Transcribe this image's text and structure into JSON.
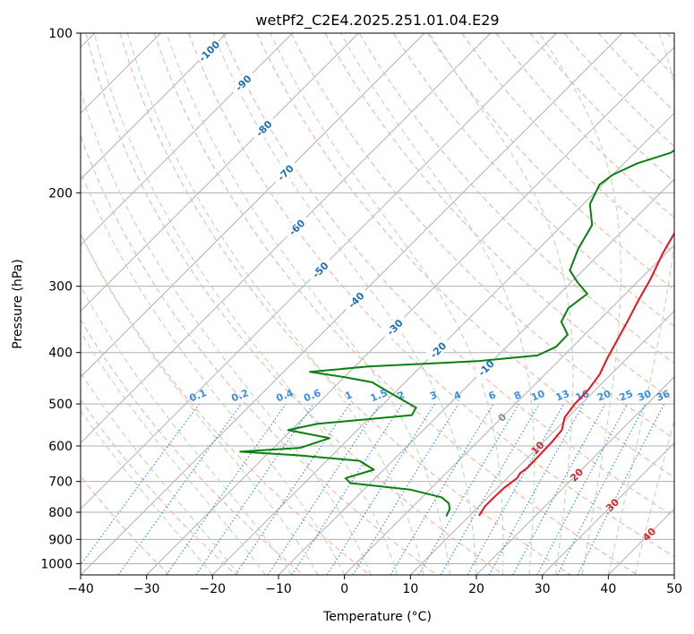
{
  "chart_data": {
    "type": "line",
    "title": "wetPf2_C2E4.2025.251.01.04.E29",
    "xlabel": "Temperature (°C)",
    "ylabel": "Pressure (hPa)",
    "xlim": [
      -40,
      50
    ],
    "ylim": [
      1050,
      100
    ],
    "x_scale": "linear (skewed isotherms)",
    "y_scale": "log",
    "x_ticks": [
      -40,
      -30,
      -20,
      -10,
      0,
      10,
      20,
      30,
      40,
      50
    ],
    "x_tick_labels": [
      "−40",
      "−30",
      "−20",
      "−10",
      "0",
      "10",
      "20",
      "30",
      "40",
      "50"
    ],
    "y_ticks": [
      1000,
      900,
      800,
      700,
      600,
      500,
      400,
      300,
      200,
      100
    ],
    "y_tick_labels": [
      "1000",
      "900",
      "800",
      "700",
      "600",
      "500",
      "400",
      "300",
      "200",
      "100"
    ],
    "grid": true,
    "colors": {
      "temperature": "#e8141c",
      "dewpoint": "#0a7f12",
      "isotherm": "#b0b0b0",
      "dry_adiabat": "#f4b4a4",
      "moist_adiabat": "#b8dcb4",
      "mixing_ratio": "#3a8ee6",
      "isotherm_label": "#1f6fb4",
      "mixing_label": "#3a8ee6",
      "lcl_label": "#8c8c8c",
      "warm_label": "#d62728"
    },
    "series": [
      {
        "name": "Temperature",
        "color": "#e8141c",
        "points": [
          [
            11.4,
            810
          ],
          [
            10.9,
            780
          ],
          [
            10.9,
            750
          ],
          [
            11.0,
            720
          ],
          [
            11.5,
            690
          ],
          [
            11.2,
            675
          ],
          [
            11.5,
            660
          ],
          [
            11.4,
            620
          ],
          [
            11.3,
            590
          ],
          [
            11.0,
            560
          ],
          [
            9.5,
            530
          ],
          [
            9.0,
            500
          ],
          [
            8.9,
            470
          ],
          [
            8.3,
            440
          ],
          [
            7.0,
            410
          ],
          [
            5.8,
            380
          ],
          [
            4.5,
            350
          ],
          [
            3.0,
            320
          ],
          [
            1.5,
            290
          ],
          [
            -0.5,
            260
          ],
          [
            -2.3,
            230
          ],
          [
            -2.8,
            215
          ],
          [
            -2.1,
            203
          ],
          [
            -1.5,
            196
          ],
          [
            0.5,
            185
          ],
          [
            2.0,
            175
          ],
          [
            2.5,
            165
          ],
          [
            3.0,
            152
          ],
          [
            4.0,
            140
          ],
          [
            5.0,
            130
          ],
          [
            5.5,
            122
          ],
          [
            6.0,
            115
          ],
          [
            7.5,
            108
          ],
          [
            8.5,
            100
          ]
        ]
      },
      {
        "name": "Dewpoint",
        "color": "#0a7f12",
        "points": [
          [
            6.5,
            812
          ],
          [
            6.0,
            790
          ],
          [
            5.0,
            770
          ],
          [
            3.0,
            750
          ],
          [
            -3.0,
            725
          ],
          [
            -13.0,
            705
          ],
          [
            -14.5,
            690
          ],
          [
            -11.5,
            665
          ],
          [
            -15.0,
            640
          ],
          [
            -25.0,
            625
          ],
          [
            -34.5,
            615
          ],
          [
            -26.0,
            605
          ],
          [
            -23.0,
            580
          ],
          [
            -30.5,
            560
          ],
          [
            -27.0,
            545
          ],
          [
            -14.0,
            525
          ],
          [
            -14.5,
            508
          ],
          [
            -18.0,
            490
          ],
          [
            -22.0,
            470
          ],
          [
            -25.0,
            455
          ],
          [
            -30.0,
            445
          ],
          [
            -36.0,
            435
          ],
          [
            -28.0,
            425
          ],
          [
            -12.0,
            415
          ],
          [
            -4.0,
            405
          ],
          [
            -2.5,
            390
          ],
          [
            -2.6,
            370
          ],
          [
            -5.5,
            350
          ],
          [
            -6.5,
            330
          ],
          [
            -5.8,
            310
          ],
          [
            -9.0,
            295
          ],
          [
            -12.0,
            280
          ],
          [
            -14.0,
            255
          ],
          [
            -15.5,
            230
          ],
          [
            -19.0,
            210
          ],
          [
            -20.5,
            193
          ],
          [
            -20.0,
            185
          ],
          [
            -18.0,
            176
          ],
          [
            -14.5,
            168
          ],
          [
            -14.0,
            160
          ],
          [
            -13.0,
            150
          ],
          [
            -11.0,
            135
          ],
          [
            -8.0,
            120
          ],
          [
            -4.0,
            108
          ],
          [
            -2.5,
            100
          ]
        ]
      }
    ],
    "isotherm_labels": [
      "-100",
      "-90",
      "-80",
      "-70",
      "-60",
      "-50",
      "-40",
      "-30",
      "-20",
      "-10"
    ],
    "mixing_ratio_labels": [
      "0.1",
      "0.2",
      "0.4",
      "0.6",
      "1",
      "1.5",
      "2",
      "3",
      "4",
      "6",
      "8",
      "10",
      "13",
      "16",
      "20",
      "25",
      "30",
      "36"
    ],
    "lcl_annotation": "0",
    "warm_isotherm_labels": [
      "10",
      "20",
      "30",
      "40"
    ]
  }
}
